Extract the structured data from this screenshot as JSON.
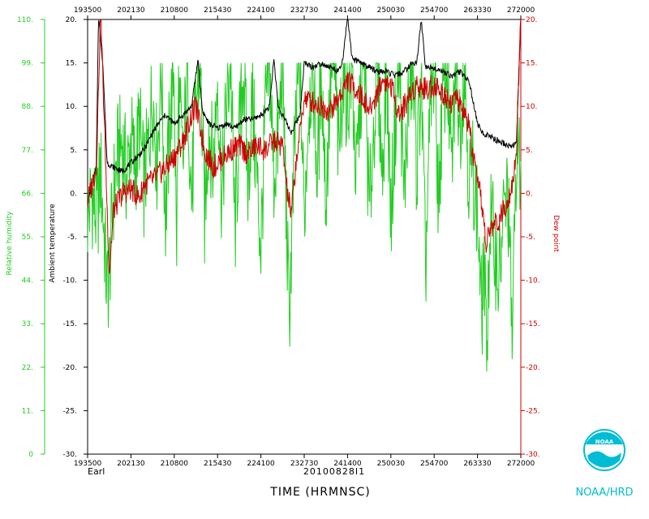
{
  "chart_data": {
    "type": "line",
    "x_ticks": [
      "193500",
      "202130",
      "210800",
      "215430",
      "224100",
      "232730",
      "241400",
      "250030",
      "254700",
      "263330",
      "272000"
    ],
    "xlabel": "TIME (HRMNSC)",
    "flight_id": "20100828I1",
    "storm_name": "Earl",
    "credit": "NOAA/HRD",
    "logo_text": "NOAA",
    "y_left_outer": {
      "label": "Relative humidity",
      "range": [
        0,
        110
      ],
      "ticks": [
        "0",
        "11.",
        "22.",
        "33.",
        "44.",
        "55.",
        "66.",
        "77.",
        "88.",
        "99.",
        "110."
      ],
      "color": "#22cc22"
    },
    "y_left_inner": {
      "label": "Ambient temperature",
      "range": [
        -30,
        20
      ],
      "ticks": [
        "-30.",
        "-25.",
        "-20.",
        "-15.",
        "-10.",
        "-5.",
        "0.",
        "5.",
        "10.",
        "15.",
        "20."
      ],
      "color": "#000000"
    },
    "y_right": {
      "label": "Dew point",
      "range": [
        -30,
        20
      ],
      "ticks": [
        "-30.",
        "-25.",
        "-20.",
        "-15.",
        "-10.",
        "-5.",
        "0.",
        "5.",
        "10.",
        "15.",
        "20."
      ],
      "color": "#cc0000"
    },
    "series": [
      {
        "name": "Relative humidity",
        "axis": "y_left_outer",
        "color": "#22cc22",
        "x_unit": "fraction of time axis",
        "points": [
          [
            0.0,
            60
          ],
          [
            0.01,
            66
          ],
          [
            0.02,
            60
          ],
          [
            0.025,
            64
          ],
          [
            0.03,
            72
          ],
          [
            0.04,
            52
          ],
          [
            0.045,
            41
          ],
          [
            0.05,
            46
          ],
          [
            0.06,
            66
          ],
          [
            0.07,
            76
          ],
          [
            0.08,
            79
          ],
          [
            0.09,
            70
          ],
          [
            0.1,
            80
          ],
          [
            0.11,
            72
          ],
          [
            0.12,
            84
          ],
          [
            0.13,
            68
          ],
          [
            0.14,
            78
          ],
          [
            0.15,
            92
          ],
          [
            0.16,
            74
          ],
          [
            0.17,
            99
          ],
          [
            0.18,
            60
          ],
          [
            0.19,
            84
          ],
          [
            0.2,
            99
          ],
          [
            0.205,
            50
          ],
          [
            0.21,
            92
          ],
          [
            0.22,
            72
          ],
          [
            0.23,
            99
          ],
          [
            0.24,
            64
          ],
          [
            0.25,
            88
          ],
          [
            0.26,
            99
          ],
          [
            0.27,
            60
          ],
          [
            0.28,
            84
          ],
          [
            0.29,
            72
          ],
          [
            0.3,
            96
          ],
          [
            0.31,
            64
          ],
          [
            0.32,
            88
          ],
          [
            0.33,
            99
          ],
          [
            0.34,
            56
          ],
          [
            0.35,
            80
          ],
          [
            0.36,
            99
          ],
          [
            0.37,
            68
          ],
          [
            0.38,
            90
          ],
          [
            0.4,
            52
          ],
          [
            0.41,
            86
          ],
          [
            0.42,
            99
          ],
          [
            0.43,
            70
          ],
          [
            0.44,
            80
          ],
          [
            0.45,
            99
          ],
          [
            0.46,
            56
          ],
          [
            0.465,
            34
          ],
          [
            0.47,
            50
          ],
          [
            0.48,
            84
          ],
          [
            0.49,
            99
          ],
          [
            0.5,
            60
          ],
          [
            0.51,
            88
          ],
          [
            0.52,
            99
          ],
          [
            0.53,
            70
          ],
          [
            0.54,
            99
          ],
          [
            0.55,
            64
          ],
          [
            0.56,
            92
          ],
          [
            0.57,
            99
          ],
          [
            0.58,
            74
          ],
          [
            0.59,
            99
          ],
          [
            0.6,
            88
          ],
          [
            0.61,
            99
          ],
          [
            0.62,
            68
          ],
          [
            0.63,
            92
          ],
          [
            0.64,
            99
          ],
          [
            0.65,
            60
          ],
          [
            0.66,
            82
          ],
          [
            0.67,
            99
          ],
          [
            0.68,
            70
          ],
          [
            0.69,
            99
          ],
          [
            0.7,
            60
          ],
          [
            0.71,
            84
          ],
          [
            0.72,
            99
          ],
          [
            0.73,
            64
          ],
          [
            0.74,
            88
          ],
          [
            0.75,
            99
          ],
          [
            0.76,
            72
          ],
          [
            0.77,
            96
          ],
          [
            0.78,
            46
          ],
          [
            0.79,
            84
          ],
          [
            0.8,
            99
          ],
          [
            0.81,
            64
          ],
          [
            0.82,
            90
          ],
          [
            0.83,
            99
          ],
          [
            0.84,
            70
          ],
          [
            0.85,
            99
          ],
          [
            0.86,
            84
          ],
          [
            0.87,
            99
          ],
          [
            0.88,
            70
          ],
          [
            0.89,
            72
          ],
          [
            0.9,
            60
          ],
          [
            0.91,
            34
          ],
          [
            0.915,
            52
          ],
          [
            0.92,
            26
          ],
          [
            0.93,
            60
          ],
          [
            0.94,
            52
          ],
          [
            0.95,
            44
          ],
          [
            0.96,
            60
          ],
          [
            0.97,
            66
          ],
          [
            0.98,
            30
          ],
          [
            0.985,
            50
          ],
          [
            0.99,
            80
          ],
          [
            1.0,
            70
          ]
        ]
      },
      {
        "name": "Ambient temperature",
        "axis": "y_left_inner",
        "color": "#000000",
        "x_unit": "fraction of time axis",
        "points": [
          [
            0.0,
            -1.0
          ],
          [
            0.02,
            3.0
          ],
          [
            0.025,
            20.5
          ],
          [
            0.035,
            15.0
          ],
          [
            0.045,
            3.5
          ],
          [
            0.06,
            3.0
          ],
          [
            0.08,
            2.5
          ],
          [
            0.1,
            3.5
          ],
          [
            0.11,
            4.0
          ],
          [
            0.13,
            5.0
          ],
          [
            0.15,
            7.0
          ],
          [
            0.17,
            8.5
          ],
          [
            0.18,
            9.0
          ],
          [
            0.2,
            8.0
          ],
          [
            0.22,
            9.0
          ],
          [
            0.24,
            10.0
          ],
          [
            0.255,
            15.5
          ],
          [
            0.265,
            9.5
          ],
          [
            0.28,
            8.0
          ],
          [
            0.3,
            7.5
          ],
          [
            0.32,
            8.0
          ],
          [
            0.34,
            7.5
          ],
          [
            0.36,
            8.5
          ],
          [
            0.38,
            8.5
          ],
          [
            0.4,
            9.0
          ],
          [
            0.42,
            10.0
          ],
          [
            0.43,
            15.5
          ],
          [
            0.44,
            10.0
          ],
          [
            0.46,
            8.0
          ],
          [
            0.47,
            7.0
          ],
          [
            0.48,
            8.0
          ],
          [
            0.49,
            9.0
          ],
          [
            0.5,
            15.0
          ],
          [
            0.52,
            14.5
          ],
          [
            0.54,
            15.0
          ],
          [
            0.56,
            14.5
          ],
          [
            0.58,
            14.0
          ],
          [
            0.59,
            15.5
          ],
          [
            0.6,
            20.5
          ],
          [
            0.61,
            15.5
          ],
          [
            0.63,
            15.0
          ],
          [
            0.65,
            14.5
          ],
          [
            0.67,
            14.0
          ],
          [
            0.69,
            14.0
          ],
          [
            0.71,
            13.5
          ],
          [
            0.73,
            14.0
          ],
          [
            0.75,
            15.0
          ],
          [
            0.76,
            15.0
          ],
          [
            0.77,
            20.0
          ],
          [
            0.78,
            14.5
          ],
          [
            0.8,
            14.5
          ],
          [
            0.82,
            14.0
          ],
          [
            0.84,
            13.5
          ],
          [
            0.86,
            14.0
          ],
          [
            0.88,
            13.0
          ],
          [
            0.89,
            10.5
          ],
          [
            0.9,
            8.0
          ],
          [
            0.91,
            7.0
          ],
          [
            0.93,
            6.5
          ],
          [
            0.95,
            6.0
          ],
          [
            0.97,
            5.5
          ],
          [
            0.985,
            5.5
          ],
          [
            0.99,
            6.0
          ],
          [
            1.0,
            20.5
          ]
        ]
      },
      {
        "name": "Dew point",
        "axis": "y_right",
        "color": "#cc0000",
        "x_unit": "fraction of time axis",
        "points": [
          [
            0.0,
            -1.0
          ],
          [
            0.02,
            3.0
          ],
          [
            0.03,
            21.0
          ],
          [
            0.04,
            6.0
          ],
          [
            0.05,
            -9.0
          ],
          [
            0.06,
            -2.0
          ],
          [
            0.08,
            0.0
          ],
          [
            0.1,
            0.5
          ],
          [
            0.12,
            -0.5
          ],
          [
            0.13,
            1.0
          ],
          [
            0.15,
            1.5
          ],
          [
            0.17,
            2.5
          ],
          [
            0.19,
            3.5
          ],
          [
            0.21,
            5.0
          ],
          [
            0.22,
            6.0
          ],
          [
            0.24,
            9.0
          ],
          [
            0.25,
            10.0
          ],
          [
            0.27,
            5.0
          ],
          [
            0.29,
            3.0
          ],
          [
            0.31,
            4.0
          ],
          [
            0.33,
            5.0
          ],
          [
            0.35,
            5.5
          ],
          [
            0.37,
            4.5
          ],
          [
            0.39,
            5.5
          ],
          [
            0.41,
            5.0
          ],
          [
            0.43,
            6.0
          ],
          [
            0.45,
            5.5
          ],
          [
            0.46,
            0.5
          ],
          [
            0.47,
            -2.5
          ],
          [
            0.48,
            3.0
          ],
          [
            0.5,
            11.0
          ],
          [
            0.52,
            10.5
          ],
          [
            0.54,
            10.0
          ],
          [
            0.56,
            9.5
          ],
          [
            0.58,
            11.0
          ],
          [
            0.6,
            13.0
          ],
          [
            0.62,
            12.0
          ],
          [
            0.64,
            10.5
          ],
          [
            0.65,
            9.5
          ],
          [
            0.66,
            10.5
          ],
          [
            0.68,
            13.0
          ],
          [
            0.7,
            12.5
          ],
          [
            0.72,
            9.0
          ],
          [
            0.74,
            11.0
          ],
          [
            0.76,
            12.5
          ],
          [
            0.78,
            12.0
          ],
          [
            0.8,
            12.5
          ],
          [
            0.82,
            11.5
          ],
          [
            0.84,
            10.5
          ],
          [
            0.85,
            11.0
          ],
          [
            0.86,
            10.0
          ],
          [
            0.88,
            8.0
          ],
          [
            0.89,
            4.0
          ],
          [
            0.9,
            1.0
          ],
          [
            0.91,
            -1.0
          ],
          [
            0.92,
            -6.0
          ],
          [
            0.93,
            -4.0
          ],
          [
            0.95,
            -3.0
          ],
          [
            0.96,
            -2.0
          ],
          [
            0.97,
            -0.5
          ],
          [
            0.98,
            1.0
          ],
          [
            0.99,
            5.0
          ],
          [
            1.0,
            20.5
          ]
        ]
      }
    ]
  }
}
